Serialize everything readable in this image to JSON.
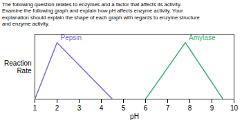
{
  "chart_data": {
    "type": "line",
    "title": "The following question relates to enzymes and a factor that affects its activity.\nExamine the following graph and explain how pH affects enzyme activity. Your\nexplanation should explain the shape of each graph with regards to enzyme structure\nand enzyme activity.",
    "x_label": "pH",
    "y_label": "Reaction\nRate",
    "series": [
      {
        "name": "Pepsin",
        "color": "#7B68EE",
        "x": [
          1.0,
          2.0,
          4.5
        ],
        "values": [
          0.0,
          1.0,
          0.0
        ]
      },
      {
        "name": "Amylase",
        "color": "#3CB371",
        "x": [
          6.0,
          7.8,
          9.5
        ],
        "values": [
          0.0,
          1.0,
          0.0
        ]
      }
    ],
    "xlim": [
      1,
      10
    ],
    "xticks": [
      1,
      2,
      3,
      4,
      5,
      6,
      7,
      8,
      9,
      10
    ],
    "ylim": [
      0,
      1.15
    ],
    "yticks": [],
    "grid": false
  }
}
